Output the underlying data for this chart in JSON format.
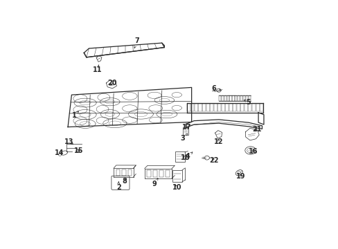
{
  "bg_color": "#ffffff",
  "line_color": "#2a2a2a",
  "fig_width": 4.89,
  "fig_height": 3.6,
  "dpi": 100,
  "label_positions": {
    "1": [
      0.115,
      0.535,
      0.135,
      0.555
    ],
    "2": [
      0.295,
      0.245,
      0.295,
      0.27
    ],
    "3": [
      0.555,
      0.445,
      0.575,
      0.465
    ],
    "4": [
      0.575,
      0.37,
      0.595,
      0.39
    ],
    "5": [
      0.82,
      0.59,
      0.8,
      0.6
    ],
    "6": [
      0.68,
      0.645,
      0.71,
      0.638
    ],
    "7": [
      0.37,
      0.84,
      0.355,
      0.8
    ],
    "8": [
      0.32,
      0.27,
      0.33,
      0.29
    ],
    "9": [
      0.44,
      0.26,
      0.455,
      0.285
    ],
    "10": [
      0.53,
      0.245,
      0.52,
      0.265
    ],
    "11": [
      0.21,
      0.72,
      0.215,
      0.742
    ],
    "12": [
      0.7,
      0.43,
      0.695,
      0.45
    ],
    "13": [
      0.095,
      0.43,
      0.12,
      0.415
    ],
    "14": [
      0.055,
      0.385,
      0.075,
      0.39
    ],
    "15": [
      0.135,
      0.395,
      0.13,
      0.4
    ],
    "16": [
      0.84,
      0.39,
      0.835,
      0.408
    ],
    "17": [
      0.57,
      0.49,
      0.565,
      0.475
    ],
    "18": [
      0.565,
      0.365,
      0.555,
      0.375
    ],
    "19": [
      0.79,
      0.29,
      0.788,
      0.308
    ],
    "20": [
      0.268,
      0.668,
      0.262,
      0.658
    ],
    "21": [
      0.855,
      0.48,
      0.84,
      0.47
    ],
    "22": [
      0.68,
      0.355,
      0.665,
      0.368
    ]
  }
}
